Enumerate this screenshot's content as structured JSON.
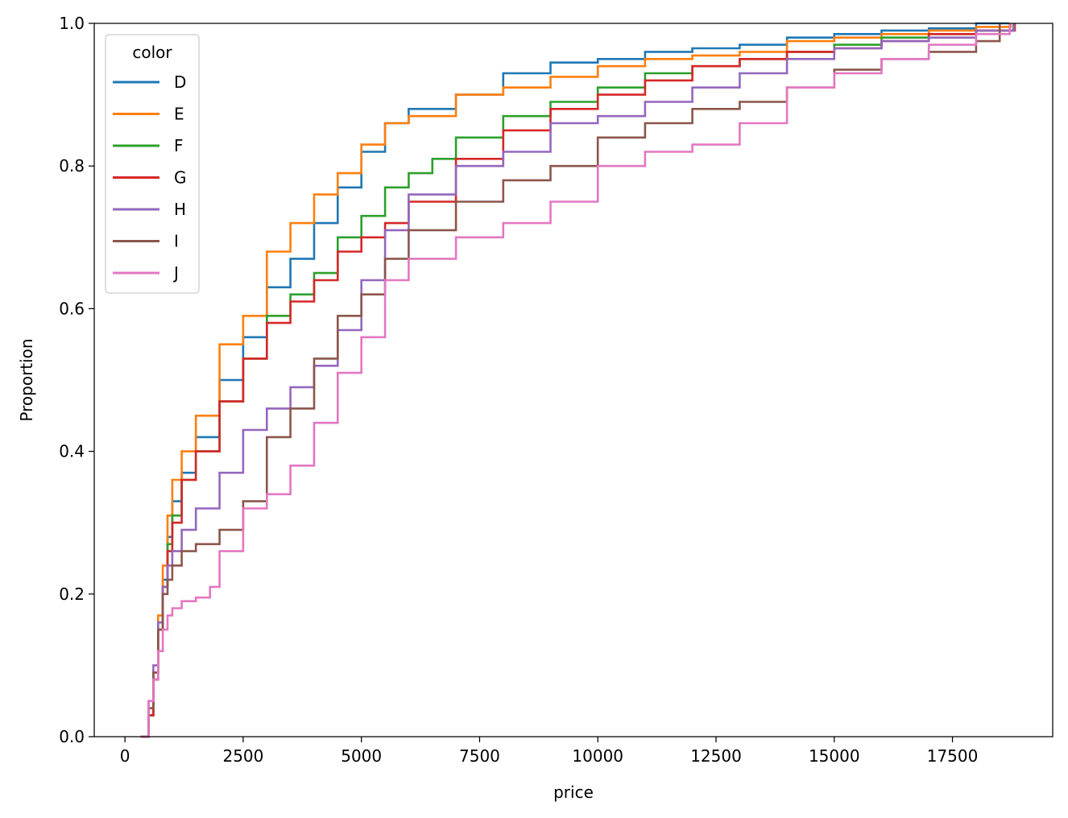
{
  "chart_data": {
    "type": "line",
    "title": "",
    "xlabel": "price",
    "ylabel": "Proportion",
    "xlim": [
      -650,
      19620
    ],
    "ylim": [
      0,
      1
    ],
    "x_ticks": [
      0,
      2500,
      5000,
      7500,
      10000,
      12500,
      15000,
      17500
    ],
    "x_tick_labels": [
      "0",
      "2500",
      "5000",
      "7500",
      "10000",
      "12500",
      "15000",
      "17500"
    ],
    "y_ticks": [
      0,
      0.2,
      0.4,
      0.6,
      0.8,
      1.0
    ],
    "y_tick_labels": [
      "0.0",
      "0.2",
      "0.4",
      "0.6",
      "0.8",
      "1.0"
    ],
    "grid": false,
    "legend": {
      "title": "color",
      "placement": "top-left"
    },
    "series": [
      {
        "name": "D",
        "color": "#1f77b4",
        "x": [
          357,
          500,
          600,
          700,
          800,
          900,
          1000,
          1200,
          1500,
          2000,
          2500,
          3000,
          3500,
          4000,
          4500,
          5000,
          5500,
          6000,
          7000,
          8000,
          9000,
          10000,
          11000,
          12000,
          13000,
          14000,
          15000,
          16000,
          17000,
          18000,
          18700
        ],
        "y": [
          0.0,
          0.03,
          0.09,
          0.16,
          0.22,
          0.28,
          0.33,
          0.37,
          0.42,
          0.5,
          0.56,
          0.63,
          0.67,
          0.72,
          0.77,
          0.82,
          0.86,
          0.88,
          0.9,
          0.93,
          0.945,
          0.95,
          0.96,
          0.965,
          0.97,
          0.98,
          0.985,
          0.99,
          0.993,
          1.0,
          1.0
        ]
      },
      {
        "name": "E",
        "color": "#ff7f0e",
        "x": [
          326,
          500,
          600,
          700,
          800,
          900,
          1000,
          1200,
          1500,
          2000,
          2500,
          3000,
          3500,
          4000,
          4500,
          5000,
          5500,
          6000,
          7000,
          8000,
          9000,
          10000,
          11000,
          12000,
          13000,
          14000,
          15000,
          16000,
          17000,
          18000,
          18730
        ],
        "y": [
          0.0,
          0.03,
          0.09,
          0.17,
          0.24,
          0.31,
          0.36,
          0.4,
          0.45,
          0.55,
          0.59,
          0.68,
          0.72,
          0.76,
          0.79,
          0.83,
          0.86,
          0.87,
          0.9,
          0.91,
          0.925,
          0.94,
          0.95,
          0.955,
          0.96,
          0.975,
          0.98,
          0.985,
          0.99,
          0.995,
          1.0
        ]
      },
      {
        "name": "F",
        "color": "#2ca02c",
        "x": [
          342,
          500,
          600,
          700,
          800,
          900,
          1000,
          1200,
          1500,
          2000,
          2500,
          3000,
          3500,
          4000,
          4500,
          5000,
          5500,
          6000,
          6500,
          7000,
          8000,
          9000,
          10000,
          11000,
          12000,
          13000,
          14000,
          15000,
          16000,
          17000,
          18000,
          18790
        ],
        "y": [
          0.0,
          0.03,
          0.08,
          0.15,
          0.21,
          0.27,
          0.31,
          0.36,
          0.4,
          0.47,
          0.53,
          0.59,
          0.62,
          0.65,
          0.7,
          0.73,
          0.77,
          0.79,
          0.81,
          0.84,
          0.87,
          0.89,
          0.91,
          0.93,
          0.94,
          0.95,
          0.96,
          0.97,
          0.98,
          0.985,
          0.99,
          1.0
        ]
      },
      {
        "name": "G",
        "color": "#d62728",
        "x": [
          354,
          500,
          600,
          700,
          800,
          900,
          1000,
          1200,
          1500,
          2000,
          2500,
          3000,
          3500,
          4000,
          4500,
          5000,
          5500,
          6000,
          7000,
          8000,
          9000,
          10000,
          11000,
          12000,
          13000,
          14000,
          15000,
          16000,
          17000,
          18000,
          18820
        ],
        "y": [
          0.0,
          0.03,
          0.08,
          0.15,
          0.21,
          0.26,
          0.3,
          0.36,
          0.4,
          0.47,
          0.53,
          0.58,
          0.61,
          0.64,
          0.68,
          0.7,
          0.72,
          0.75,
          0.81,
          0.85,
          0.88,
          0.9,
          0.92,
          0.94,
          0.95,
          0.96,
          0.965,
          0.975,
          0.985,
          0.99,
          1.0
        ]
      },
      {
        "name": "H",
        "color": "#9467bd",
        "x": [
          337,
          500,
          600,
          700,
          800,
          900,
          1000,
          1200,
          1500,
          2000,
          2500,
          3000,
          3500,
          4000,
          4500,
          5000,
          5500,
          6000,
          7000,
          8000,
          9000,
          10000,
          11000,
          12000,
          13000,
          14000,
          15000,
          16000,
          17000,
          18000,
          18800
        ],
        "y": [
          0.0,
          0.05,
          0.1,
          0.16,
          0.21,
          0.24,
          0.26,
          0.29,
          0.32,
          0.37,
          0.43,
          0.46,
          0.49,
          0.52,
          0.57,
          0.64,
          0.71,
          0.76,
          0.8,
          0.82,
          0.86,
          0.87,
          0.89,
          0.91,
          0.93,
          0.95,
          0.965,
          0.975,
          0.98,
          0.99,
          1.0
        ]
      },
      {
        "name": "I",
        "color": "#8c564b",
        "x": [
          334,
          500,
          600,
          700,
          800,
          900,
          1000,
          1200,
          1500,
          2000,
          2500,
          3000,
          3500,
          4000,
          4500,
          5000,
          5500,
          6000,
          7000,
          8000,
          9000,
          10000,
          11000,
          12000,
          13000,
          14000,
          15000,
          16000,
          17000,
          18000,
          18500
        ],
        "y": [
          0.0,
          0.04,
          0.09,
          0.15,
          0.2,
          0.22,
          0.24,
          0.26,
          0.27,
          0.29,
          0.33,
          0.42,
          0.46,
          0.53,
          0.59,
          0.62,
          0.67,
          0.71,
          0.75,
          0.78,
          0.8,
          0.84,
          0.86,
          0.88,
          0.89,
          0.91,
          0.935,
          0.95,
          0.96,
          0.975,
          1.0
        ]
      },
      {
        "name": "J",
        "color": "#e377c2",
        "x": [
          335,
          500,
          600,
          700,
          800,
          900,
          1000,
          1200,
          1500,
          1800,
          2000,
          2500,
          3000,
          3500,
          4000,
          4500,
          5000,
          5500,
          6000,
          7000,
          8000,
          9000,
          10000,
          11000,
          12000,
          13000,
          14000,
          15000,
          16000,
          17000,
          18000,
          18710
        ],
        "y": [
          0.0,
          0.05,
          0.08,
          0.12,
          0.15,
          0.17,
          0.18,
          0.19,
          0.195,
          0.21,
          0.26,
          0.32,
          0.34,
          0.38,
          0.44,
          0.51,
          0.56,
          0.64,
          0.67,
          0.7,
          0.72,
          0.75,
          0.8,
          0.82,
          0.83,
          0.86,
          0.91,
          0.93,
          0.95,
          0.97,
          0.985,
          1.0
        ]
      }
    ]
  }
}
